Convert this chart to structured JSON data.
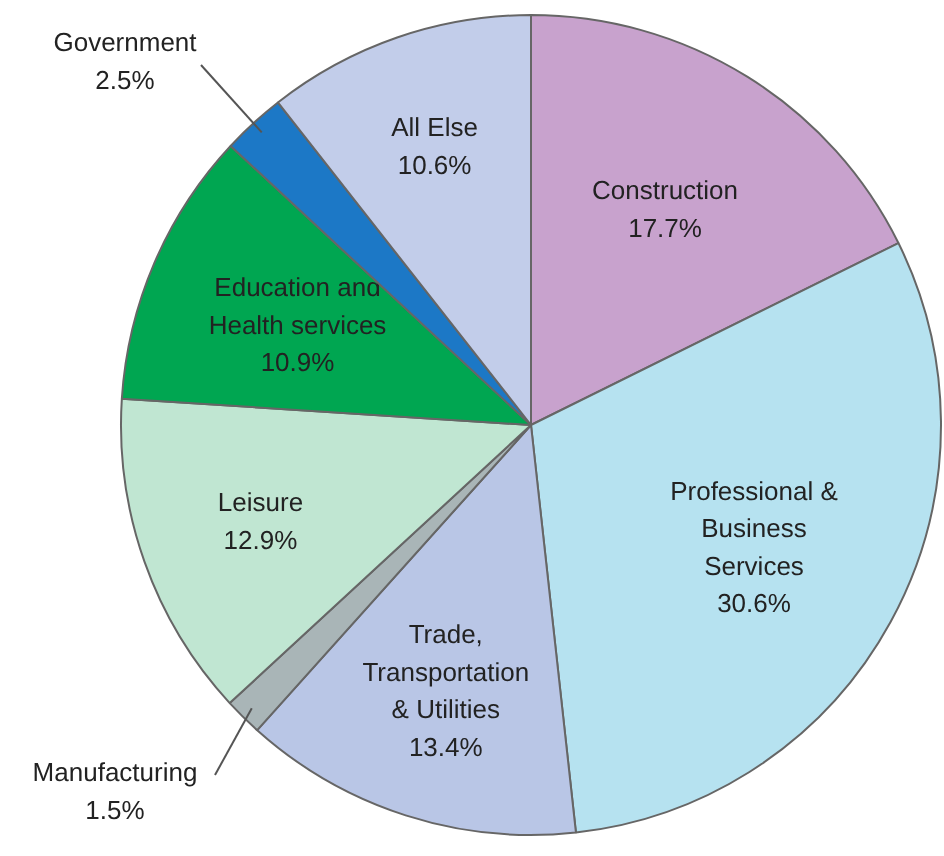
{
  "chart_data": {
    "type": "pie",
    "categories": [
      "Construction",
      "Professional & Business Services",
      "Trade, Transportation & Utilities",
      "Manufacturing",
      "Leisure",
      "Education and Health services",
      "Government",
      "All Else"
    ],
    "values": [
      17.7,
      30.6,
      13.4,
      1.5,
      12.9,
      10.9,
      2.5,
      10.6
    ],
    "colors": [
      "#c8a2cd",
      "#b6e2f0",
      "#b9c6e6",
      "#a9b5b7",
      "#c0e6d2",
      "#00a651",
      "#1c78c6",
      "#c2cdea"
    ],
    "value_labels": [
      "17.7%",
      "30.6%",
      "13.4%",
      "1.5%",
      "12.9%",
      "10.9%",
      "2.5%",
      "10.6%"
    ],
    "data_labels": true
  }
}
